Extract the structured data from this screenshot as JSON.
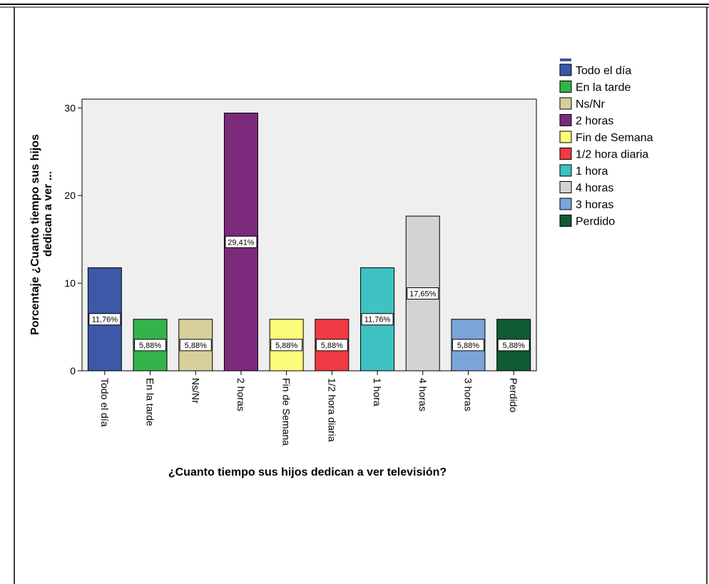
{
  "chart_data": {
    "type": "bar",
    "xlabel": "¿Cuanto tiempo sus hijos dedican a ver televisión?",
    "ylabel_lines": [
      "Porcentaje ¿Cuanto tiempo sus hijos",
      "dedican a ver ..."
    ],
    "ylim": [
      0,
      31
    ],
    "yticks": [
      0,
      10,
      20,
      30
    ],
    "grid": false,
    "legend_position": "right",
    "categories": [
      "Todo el día",
      "En la tarde",
      "Ns/Nr",
      "2 horas",
      "Fin de Semana",
      "1/2 hora diaria",
      "1 hora",
      "4 horas",
      "3 horas",
      "Perdido"
    ],
    "values": [
      11.76,
      5.88,
      5.88,
      29.41,
      5.88,
      5.88,
      11.76,
      17.65,
      5.88,
      5.88
    ],
    "data_labels": [
      "11,76%",
      "5,88%",
      "5,88%",
      "29,41%",
      "5,88%",
      "5,88%",
      "11,76%",
      "17,65%",
      "5,88%",
      "5,88%"
    ],
    "colors": [
      "#3c58a7",
      "#33b34a",
      "#d6cf9a",
      "#7c2a7c",
      "#fdfb7a",
      "#ee3a43",
      "#40c1c2",
      "#d3d3d3",
      "#7ba4d8",
      "#0f5a33"
    ],
    "legend": [
      "Todo el día",
      "En la tarde",
      "Ns/Nr",
      "2 horas",
      "Fin de Semana",
      "1/2 hora diaria",
      "1 hora",
      "4 horas",
      "3 horas",
      "Perdido"
    ]
  }
}
